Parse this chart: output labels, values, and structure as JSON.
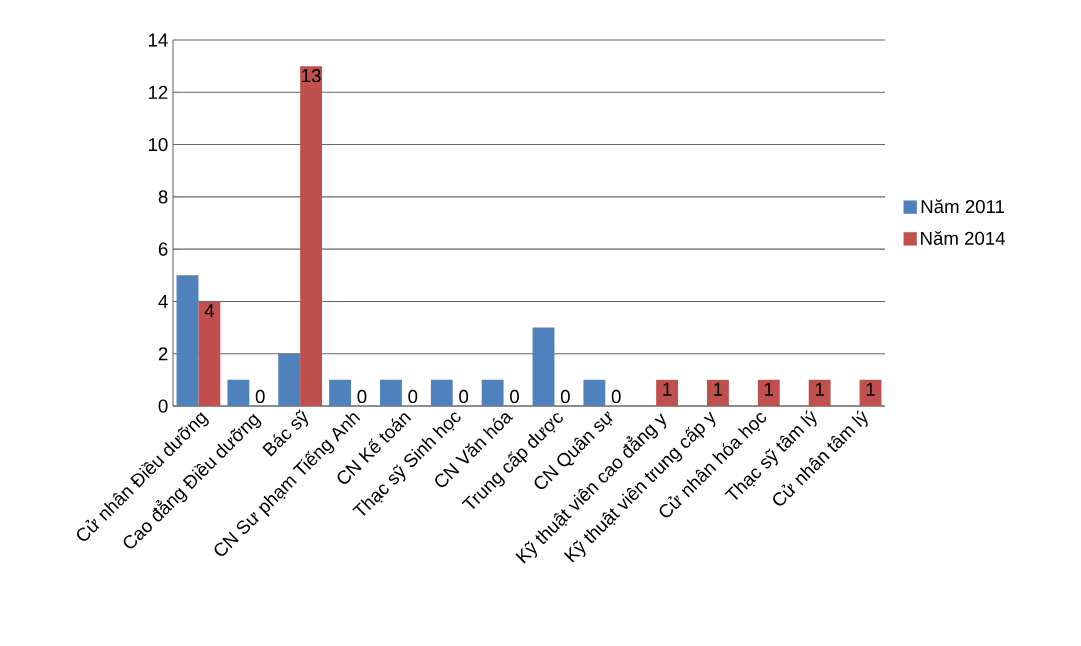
{
  "chart_data": {
    "type": "bar",
    "categories": [
      "Cử nhân Điều dưỡng",
      "Cao đẳng Điều dưỡng",
      "Bác sỹ",
      "CN Sư phạm Tiếng Anh",
      "CN Kế toán",
      "Thạc sỹ Sinh học",
      "CN Văn hóa",
      "Trung cấp dược",
      "CN Quân sự",
      "Kỹ thuật viên cao đẳng y",
      "Kỹ thuật viên trung cấp y",
      "Cử nhân hóa học",
      "Thạc sỹ tâm lý",
      "Cử nhân tâm lý"
    ],
    "series": [
      {
        "name": "Năm 2011",
        "color": "#4f81bd",
        "values": [
          5,
          1,
          2,
          1,
          1,
          1,
          1,
          3,
          1,
          0,
          0,
          0,
          0,
          0
        ]
      },
      {
        "name": "Năm 2014",
        "color": "#c0504d",
        "values": [
          4,
          0,
          13,
          0,
          0,
          0,
          0,
          0,
          0,
          1,
          1,
          1,
          1,
          1
        ],
        "value_labels": [
          "4",
          "0",
          "13",
          "0",
          "0",
          "0",
          "0",
          "0",
          "0",
          "1",
          "1",
          "1",
          "1",
          "1"
        ]
      }
    ],
    "ylim": [
      0,
      14
    ],
    "yticks": [
      0,
      2,
      4,
      6,
      8,
      10,
      12,
      14
    ],
    "grid": "y",
    "legend": "right"
  }
}
